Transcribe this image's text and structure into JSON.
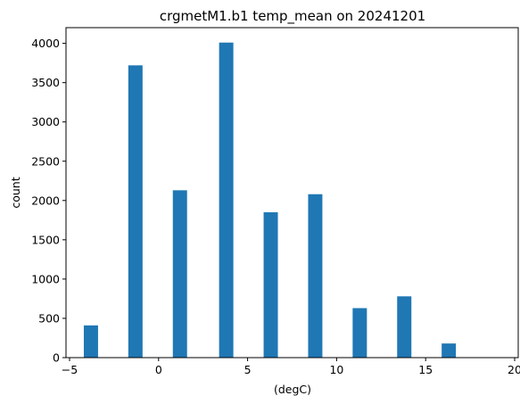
{
  "chart_data": {
    "type": "bar",
    "title": "crgmetM1.b1 temp_mean on 20241201",
    "xlabel": "(degC)",
    "ylabel": "count",
    "xlim": [
      -5.2,
      20.2
    ],
    "ylim": [
      0,
      4200
    ],
    "xticks": [
      -5,
      0,
      5,
      10,
      15,
      20
    ],
    "yticks": [
      0,
      500,
      1000,
      1500,
      2000,
      2500,
      3000,
      3500,
      4000
    ],
    "bar_width": 0.8,
    "bins": [
      {
        "x": -3.8,
        "value": 410
      },
      {
        "x": -1.3,
        "value": 3720
      },
      {
        "x": 1.2,
        "value": 2130
      },
      {
        "x": 3.8,
        "value": 4010
      },
      {
        "x": 6.3,
        "value": 1850
      },
      {
        "x": 8.8,
        "value": 2080
      },
      {
        "x": 11.3,
        "value": 630
      },
      {
        "x": 13.8,
        "value": 780
      },
      {
        "x": 16.3,
        "value": 180
      }
    ],
    "bar_color": "#1f77b4",
    "grid": false
  }
}
